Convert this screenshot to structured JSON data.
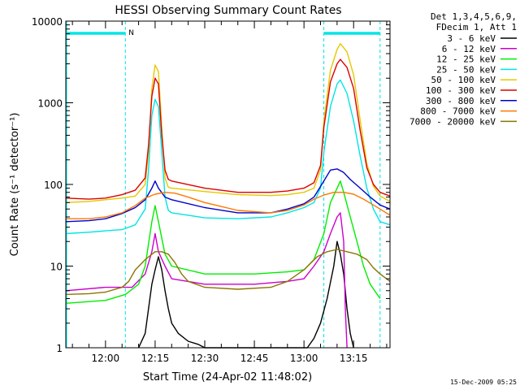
{
  "chart_data": {
    "type": "line",
    "title": "HESSI Observing Summary Count Rates",
    "xlabel": "Start Time (24-Apr-02 11:48:02)",
    "ylabel": "Count Rate (s⁻¹ detector⁻¹)",
    "y_scale": "log",
    "ylim": [
      1,
      10000
    ],
    "xlim": [
      "11:48",
      "13:26"
    ],
    "x_ticks": [
      "12:00",
      "12:15",
      "12:30",
      "12:45",
      "13:00",
      "13:15"
    ],
    "y_ticks": [
      "1",
      "10",
      "100",
      "1000",
      "10000"
    ],
    "legend_header": [
      "Det 1,3,4,5,6,9,",
      "FDecim 1, Att 1"
    ],
    "legend_position": "right",
    "timestamp": "15-Dec-2009 05:25",
    "annotation_n": "N",
    "night_bars": [
      {
        "start": "11:48",
        "end": "12:06"
      },
      {
        "start": "13:06",
        "end": "13:23"
      }
    ],
    "night_markers": [
      "12:06",
      "13:06",
      "13:23"
    ],
    "series": [
      {
        "name": "3 - 6 keV",
        "color": "#000000",
        "points": [
          [
            "12:10",
            1
          ],
          [
            "12:12",
            1.5
          ],
          [
            "12:13",
            3
          ],
          [
            "12:14",
            6
          ],
          [
            "12:15",
            9
          ],
          [
            "12:16",
            13
          ],
          [
            "12:17",
            9
          ],
          [
            "12:18",
            5
          ],
          [
            "12:19",
            3
          ],
          [
            "12:20",
            2
          ],
          [
            "12:22",
            1.5
          ],
          [
            "12:25",
            1.2
          ],
          [
            "12:28",
            1.1
          ],
          [
            "12:30",
            1
          ],
          [
            "13:01",
            1
          ],
          [
            "13:03",
            1.3
          ],
          [
            "13:05",
            2
          ],
          [
            "13:07",
            4
          ],
          [
            "13:09",
            10
          ],
          [
            "13:10",
            20
          ],
          [
            "13:11",
            14
          ],
          [
            "13:12",
            8
          ],
          [
            "13:13",
            3
          ],
          [
            "13:14",
            1.5
          ],
          [
            "13:15",
            1
          ]
        ]
      },
      {
        "name": "6 - 12 keV",
        "color": "#cc00cc",
        "points": [
          [
            "11:48",
            5
          ],
          [
            "12:00",
            5.5
          ],
          [
            "12:08",
            5.5
          ],
          [
            "12:12",
            8
          ],
          [
            "12:14",
            15
          ],
          [
            "12:15",
            25
          ],
          [
            "12:16",
            15
          ],
          [
            "12:18",
            10
          ],
          [
            "12:20",
            7
          ],
          [
            "12:30",
            6
          ],
          [
            "12:45",
            6
          ],
          [
            "12:55",
            6.5
          ],
          [
            "13:00",
            7
          ],
          [
            "13:03",
            10
          ],
          [
            "13:06",
            15
          ],
          [
            "13:08",
            25
          ],
          [
            "13:10",
            40
          ],
          [
            "13:11",
            45
          ],
          [
            "13:12",
            20
          ],
          [
            "13:12.5",
            3
          ],
          [
            "13:13",
            1
          ]
        ]
      },
      {
        "name": "12 - 25 keV",
        "color": "#00ee00",
        "points": [
          [
            "11:48",
            3.5
          ],
          [
            "12:00",
            3.8
          ],
          [
            "12:06",
            4.5
          ],
          [
            "12:10",
            6
          ],
          [
            "12:12",
            10
          ],
          [
            "12:14",
            35
          ],
          [
            "12:15",
            55
          ],
          [
            "12:16",
            35
          ],
          [
            "12:18",
            14
          ],
          [
            "12:20",
            10
          ],
          [
            "12:30",
            8
          ],
          [
            "12:45",
            8
          ],
          [
            "12:55",
            8.5
          ],
          [
            "13:00",
            9
          ],
          [
            "13:03",
            12
          ],
          [
            "13:06",
            25
          ],
          [
            "13:08",
            60
          ],
          [
            "13:10",
            90
          ],
          [
            "13:11",
            110
          ],
          [
            "13:12",
            80
          ],
          [
            "13:14",
            40
          ],
          [
            "13:16",
            20
          ],
          [
            "13:18",
            10
          ],
          [
            "13:20",
            6
          ],
          [
            "13:23",
            4
          ]
        ]
      },
      {
        "name": "25 - 50 keV",
        "color": "#00e5e5",
        "points": [
          [
            "11:48",
            25
          ],
          [
            "11:55",
            26
          ],
          [
            "12:00",
            27
          ],
          [
            "12:05",
            28
          ],
          [
            "12:09",
            32
          ],
          [
            "12:12",
            50
          ],
          [
            "12:13",
            150
          ],
          [
            "12:14",
            700
          ],
          [
            "12:15",
            1100
          ],
          [
            "12:16",
            900
          ],
          [
            "12:17",
            250
          ],
          [
            "12:18",
            70
          ],
          [
            "12:19",
            48
          ],
          [
            "12:20",
            45
          ],
          [
            "12:25",
            42
          ],
          [
            "12:30",
            39
          ],
          [
            "12:40",
            38
          ],
          [
            "12:50",
            40
          ],
          [
            "12:55",
            45
          ],
          [
            "13:00",
            52
          ],
          [
            "13:03",
            60
          ],
          [
            "13:05",
            90
          ],
          [
            "13:06",
            250
          ],
          [
            "13:08",
            900
          ],
          [
            "13:10",
            1700
          ],
          [
            "13:11",
            1900
          ],
          [
            "13:13",
            1300
          ],
          [
            "13:15",
            600
          ],
          [
            "13:17",
            220
          ],
          [
            "13:19",
            90
          ],
          [
            "13:21",
            50
          ],
          [
            "13:23",
            35
          ],
          [
            "13:26",
            32
          ]
        ]
      },
      {
        "name": "50 - 100 keV",
        "color": "#e5c800",
        "points": [
          [
            "11:48",
            60
          ],
          [
            "11:55",
            62
          ],
          [
            "12:00",
            65
          ],
          [
            "12:05",
            68
          ],
          [
            "12:09",
            72
          ],
          [
            "12:12",
            100
          ],
          [
            "12:13",
            250
          ],
          [
            "12:14",
            1500
          ],
          [
            "12:15",
            2900
          ],
          [
            "12:16",
            2400
          ],
          [
            "12:17",
            500
          ],
          [
            "12:18",
            120
          ],
          [
            "12:19",
            92
          ],
          [
            "12:20",
            90
          ],
          [
            "12:30",
            82
          ],
          [
            "12:40",
            75
          ],
          [
            "12:50",
            73
          ],
          [
            "12:55",
            75
          ],
          [
            "13:00",
            80
          ],
          [
            "13:03",
            90
          ],
          [
            "13:05",
            150
          ],
          [
            "13:06",
            600
          ],
          [
            "13:08",
            2500
          ],
          [
            "13:10",
            4500
          ],
          [
            "13:11",
            5300
          ],
          [
            "13:13",
            4200
          ],
          [
            "13:15",
            2200
          ],
          [
            "13:17",
            600
          ],
          [
            "13:19",
            180
          ],
          [
            "13:21",
            95
          ],
          [
            "13:23",
            72
          ],
          [
            "13:26",
            62
          ]
        ]
      },
      {
        "name": "100 - 300 keV",
        "color": "#dd0000",
        "points": [
          [
            "11:48",
            68
          ],
          [
            "11:55",
            66
          ],
          [
            "12:00",
            68
          ],
          [
            "12:05",
            75
          ],
          [
            "12:09",
            85
          ],
          [
            "12:12",
            120
          ],
          [
            "12:13",
            300
          ],
          [
            "12:14",
            1200
          ],
          [
            "12:15",
            2000
          ],
          [
            "12:16",
            1700
          ],
          [
            "12:17",
            400
          ],
          [
            "12:18",
            150
          ],
          [
            "12:19",
            115
          ],
          [
            "12:20",
            110
          ],
          [
            "12:30",
            90
          ],
          [
            "12:40",
            80
          ],
          [
            "12:50",
            80
          ],
          [
            "12:55",
            83
          ],
          [
            "13:00",
            90
          ],
          [
            "13:03",
            105
          ],
          [
            "13:05",
            170
          ],
          [
            "13:06",
            500
          ],
          [
            "13:08",
            1800
          ],
          [
            "13:10",
            3000
          ],
          [
            "13:11",
            3400
          ],
          [
            "13:13",
            2700
          ],
          [
            "13:15",
            1500
          ],
          [
            "13:17",
            450
          ],
          [
            "13:19",
            160
          ],
          [
            "13:21",
            100
          ],
          [
            "13:23",
            80
          ],
          [
            "13:26",
            72
          ]
        ]
      },
      {
        "name": "300 - 800 keV",
        "color": "#0000cc",
        "points": [
          [
            "11:48",
            35
          ],
          [
            "11:55",
            36
          ],
          [
            "12:00",
            38
          ],
          [
            "12:05",
            44
          ],
          [
            "12:09",
            52
          ],
          [
            "12:12",
            65
          ],
          [
            "12:14",
            90
          ],
          [
            "12:15",
            110
          ],
          [
            "12:16",
            90
          ],
          [
            "12:18",
            70
          ],
          [
            "12:20",
            65
          ],
          [
            "12:30",
            52
          ],
          [
            "12:40",
            45
          ],
          [
            "12:50",
            45
          ],
          [
            "12:55",
            50
          ],
          [
            "13:00",
            58
          ],
          [
            "13:03",
            70
          ],
          [
            "13:06",
            110
          ],
          [
            "13:08",
            150
          ],
          [
            "13:10",
            155
          ],
          [
            "13:12",
            140
          ],
          [
            "13:14",
            115
          ],
          [
            "13:17",
            90
          ],
          [
            "13:20",
            70
          ],
          [
            "13:23",
            56
          ],
          [
            "13:26",
            50
          ]
        ]
      },
      {
        "name": "800 - 7000 keV",
        "color": "#ff7700",
        "points": [
          [
            "11:48",
            38
          ],
          [
            "11:55",
            38
          ],
          [
            "12:00",
            40
          ],
          [
            "12:05",
            45
          ],
          [
            "12:09",
            55
          ],
          [
            "12:12",
            68
          ],
          [
            "12:15",
            76
          ],
          [
            "12:18",
            80
          ],
          [
            "12:21",
            78
          ],
          [
            "12:25",
            70
          ],
          [
            "12:30",
            60
          ],
          [
            "12:40",
            48
          ],
          [
            "12:50",
            45
          ],
          [
            "12:55",
            48
          ],
          [
            "13:00",
            56
          ],
          [
            "13:03",
            66
          ],
          [
            "13:06",
            74
          ],
          [
            "13:09",
            80
          ],
          [
            "13:12",
            80
          ],
          [
            "13:15",
            76
          ],
          [
            "13:18",
            66
          ],
          [
            "13:21",
            56
          ],
          [
            "13:23",
            50
          ],
          [
            "13:26",
            42
          ]
        ]
      },
      {
        "name": "7000 - 20000 keV",
        "color": "#8c7400",
        "points": [
          [
            "11:48",
            4.5
          ],
          [
            "11:55",
            4.6
          ],
          [
            "12:00",
            4.8
          ],
          [
            "12:05",
            5.5
          ],
          [
            "12:07",
            6.5
          ],
          [
            "12:09",
            9
          ],
          [
            "12:12",
            12
          ],
          [
            "12:15",
            15
          ],
          [
            "12:17",
            15
          ],
          [
            "12:19",
            14
          ],
          [
            "12:21",
            11
          ],
          [
            "12:23",
            8
          ],
          [
            "12:25",
            6.5
          ],
          [
            "12:30",
            5.5
          ],
          [
            "12:40",
            5.2
          ],
          [
            "12:50",
            5.5
          ],
          [
            "12:55",
            6.5
          ],
          [
            "13:00",
            9
          ],
          [
            "13:04",
            13
          ],
          [
            "13:07",
            15
          ],
          [
            "13:10",
            16
          ],
          [
            "13:13",
            15
          ],
          [
            "13:16",
            14
          ],
          [
            "13:19",
            12
          ],
          [
            "13:21",
            9.5
          ],
          [
            "13:23",
            8
          ],
          [
            "13:26",
            6.5
          ]
        ]
      }
    ]
  }
}
